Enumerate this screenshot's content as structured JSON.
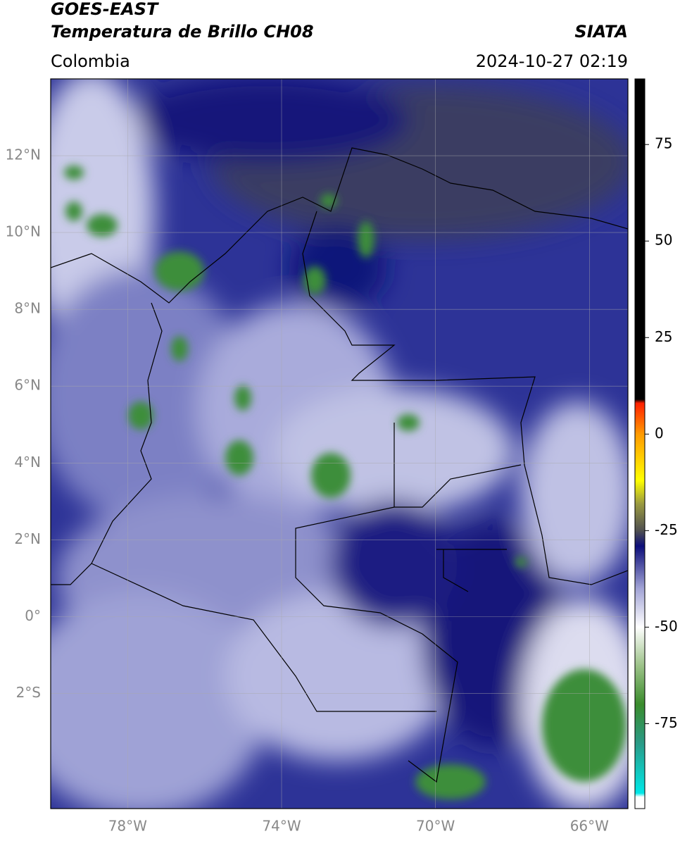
{
  "header": {
    "satellite": "GOES-EAST",
    "product": "Temperatura de Brillo CH08",
    "source": "SIATA",
    "region": "Colombia",
    "datetime": "2024-10-27 02:19"
  },
  "map": {
    "xlim": [
      -80,
      -65
    ],
    "ylim": [
      -5,
      14
    ],
    "grid": true,
    "xticks": [
      {
        "value": -78,
        "label": "78°W"
      },
      {
        "value": -74,
        "label": "74°W"
      },
      {
        "value": -70,
        "label": "70°W"
      },
      {
        "value": -66,
        "label": "66°W"
      }
    ],
    "yticks": [
      {
        "value": 12,
        "label": "12°N"
      },
      {
        "value": 10,
        "label": "10°N"
      },
      {
        "value": 8,
        "label": "8°N"
      },
      {
        "value": 6,
        "label": "6°N"
      },
      {
        "value": 4,
        "label": "4°N"
      },
      {
        "value": 2,
        "label": "2°N"
      },
      {
        "value": 0,
        "label": "0°"
      },
      {
        "value": -2,
        "label": "2°S"
      }
    ]
  },
  "colorbar": {
    "lim": [
      -97,
      92
    ],
    "ticks": [
      75,
      50,
      25,
      0,
      -25,
      -50,
      -75
    ],
    "stops": [
      {
        "value": -97,
        "color": "#ffffff"
      },
      {
        "value": -94,
        "color": "#ffffff"
      },
      {
        "value": -93,
        "color": "#00e8e8"
      },
      {
        "value": -80,
        "color": "#2a9a86"
      },
      {
        "value": -70,
        "color": "#3a8c2c"
      },
      {
        "value": -60,
        "color": "#9cc288"
      },
      {
        "value": -50,
        "color": "#ffffff"
      },
      {
        "value": -40,
        "color": "#a2a4d6"
      },
      {
        "value": -29,
        "color": "#0c0e7a"
      },
      {
        "value": -25,
        "color": "#505050"
      },
      {
        "value": -18,
        "color": "#9a9a40"
      },
      {
        "value": -12,
        "color": "#ffff00"
      },
      {
        "value": 0,
        "color": "#ff9a00"
      },
      {
        "value": 8,
        "color": "#ff2000"
      },
      {
        "value": 9,
        "color": "#000000"
      },
      {
        "value": 92,
        "color": "#000000"
      }
    ]
  }
}
